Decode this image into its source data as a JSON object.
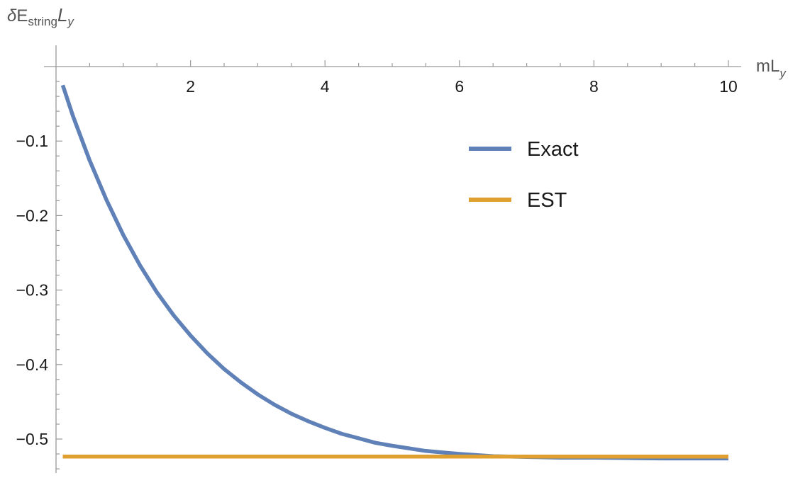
{
  "chart_data": {
    "type": "line",
    "ylabel": {
      "delta": "δ",
      "E": "E",
      "sub": "string",
      "L": "L",
      "y": "y"
    },
    "xlabel": {
      "main": "mL",
      "sub": "y"
    },
    "xlim": [
      0,
      10
    ],
    "ylim": [
      -0.55,
      0.015
    ],
    "x_ticks": [
      {
        "value": 2,
        "label": "2"
      },
      {
        "value": 4,
        "label": "4"
      },
      {
        "value": 6,
        "label": "6"
      },
      {
        "value": 8,
        "label": "8"
      },
      {
        "value": 10,
        "label": "10"
      }
    ],
    "y_ticks": [
      {
        "value": -0.1,
        "label": "−0.1"
      },
      {
        "value": -0.2,
        "label": "−0.2"
      },
      {
        "value": -0.3,
        "label": "−0.3"
      },
      {
        "value": -0.4,
        "label": "−0.4"
      },
      {
        "value": -0.5,
        "label": "−0.5"
      }
    ],
    "legend_position": "top-right",
    "series": [
      {
        "name": "Exact",
        "color": "#5f81b7",
        "x": [
          0.1,
          0.25,
          0.5,
          0.75,
          1,
          1.25,
          1.5,
          1.75,
          2,
          2.25,
          2.5,
          2.75,
          3,
          3.25,
          3.5,
          3.75,
          4,
          4.25,
          4.5,
          4.75,
          5,
          5.5,
          6,
          6.5,
          7,
          7.5,
          8,
          8.5,
          9,
          9.5,
          10
        ],
        "y": [
          -0.025,
          -0.066,
          -0.126,
          -0.179,
          -0.226,
          -0.267,
          -0.303,
          -0.334,
          -0.361,
          -0.385,
          -0.406,
          -0.424,
          -0.44,
          -0.454,
          -0.466,
          -0.476,
          -0.485,
          -0.493,
          -0.499,
          -0.505,
          -0.509,
          -0.516,
          -0.52,
          -0.523,
          -0.524,
          -0.525,
          -0.525,
          -0.5255,
          -0.526,
          -0.526,
          -0.526
        ]
      },
      {
        "name": "EST",
        "color": "#e0a030",
        "x": [
          0.1,
          10
        ],
        "y": [
          -0.5236,
          -0.5236
        ]
      }
    ]
  }
}
